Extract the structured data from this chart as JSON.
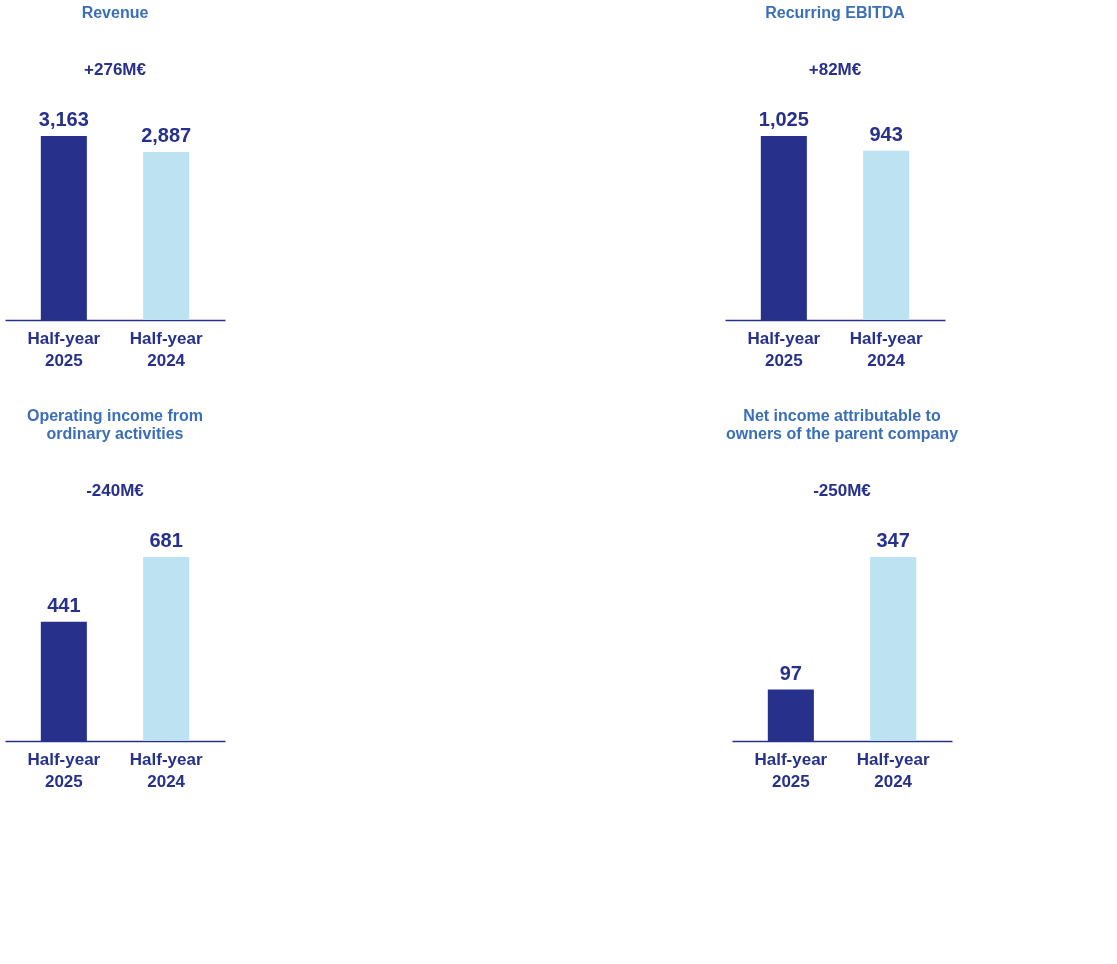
{
  "chart_data": [
    {
      "type": "bar",
      "title": "Revenue",
      "categories": [
        "Half-year 2025",
        "Half-year 2024"
      ],
      "values": [
        3163,
        2887
      ],
      "colors": [
        "#27308a",
        "#bde3f2"
      ],
      "data_labels": true,
      "value_labels": [
        "3,163",
        "2,887"
      ],
      "annotations": [
        "+276M€"
      ]
    },
    {
      "type": "bar",
      "title": "Recurring EBITDA",
      "categories": [
        "Half-year 2025",
        "Half-year 2024"
      ],
      "values": [
        1025,
        943
      ],
      "colors": [
        "#27308a",
        "#bde3f2"
      ],
      "data_labels": true,
      "value_labels": [
        "1,025",
        "943"
      ],
      "annotations": [
        "+82M€"
      ]
    },
    {
      "type": "bar",
      "title": "Operating income from ordinary activities",
      "categories": [
        "Half-year 2025",
        "Half-year 2024"
      ],
      "values": [
        441,
        681
      ],
      "colors": [
        "#27308a",
        "#bde3f2"
      ],
      "data_labels": true,
      "value_labels": [
        "441",
        "681"
      ],
      "annotations": [
        "-240M€"
      ]
    },
    {
      "type": "bar",
      "title": "Net income attributable to owners of the parent company",
      "categories": [
        "Half-year 2025",
        "Half-year 2024"
      ],
      "values": [
        97,
        347
      ],
      "colors": [
        "#27308a",
        "#bde3f2"
      ],
      "data_labels": true,
      "value_labels": [
        "97",
        "347"
      ],
      "annotations": [
        "-250M€"
      ]
    }
  ]
}
